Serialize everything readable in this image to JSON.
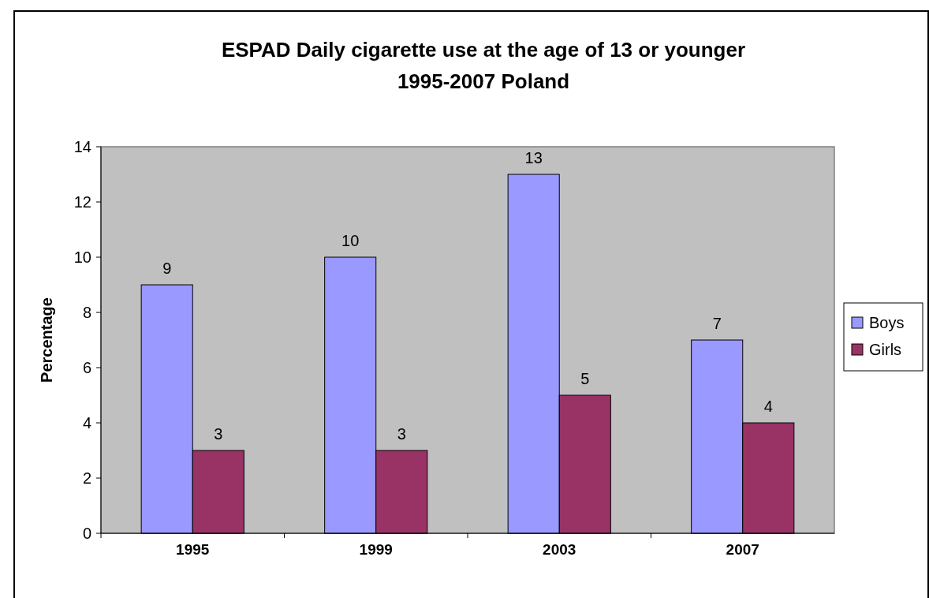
{
  "chart_data": {
    "type": "bar",
    "title": "ESPAD Daily cigarette use at the age of 13 or younger",
    "subtitle": "1995-2007 Poland",
    "ylabel": "Percentage",
    "categories": [
      "1995",
      "1999",
      "2003",
      "2007"
    ],
    "series": [
      {
        "name": "Boys",
        "color": "#9999ff",
        "values": [
          9,
          10,
          13,
          7
        ]
      },
      {
        "name": "Girls",
        "color": "#993366",
        "values": [
          3,
          3,
          5,
          4
        ]
      }
    ],
    "ylim": [
      0,
      14
    ],
    "yticks": [
      0,
      2,
      4,
      6,
      8,
      10,
      12,
      14
    ],
    "data_labels": true,
    "legend": "right",
    "grid": false
  }
}
